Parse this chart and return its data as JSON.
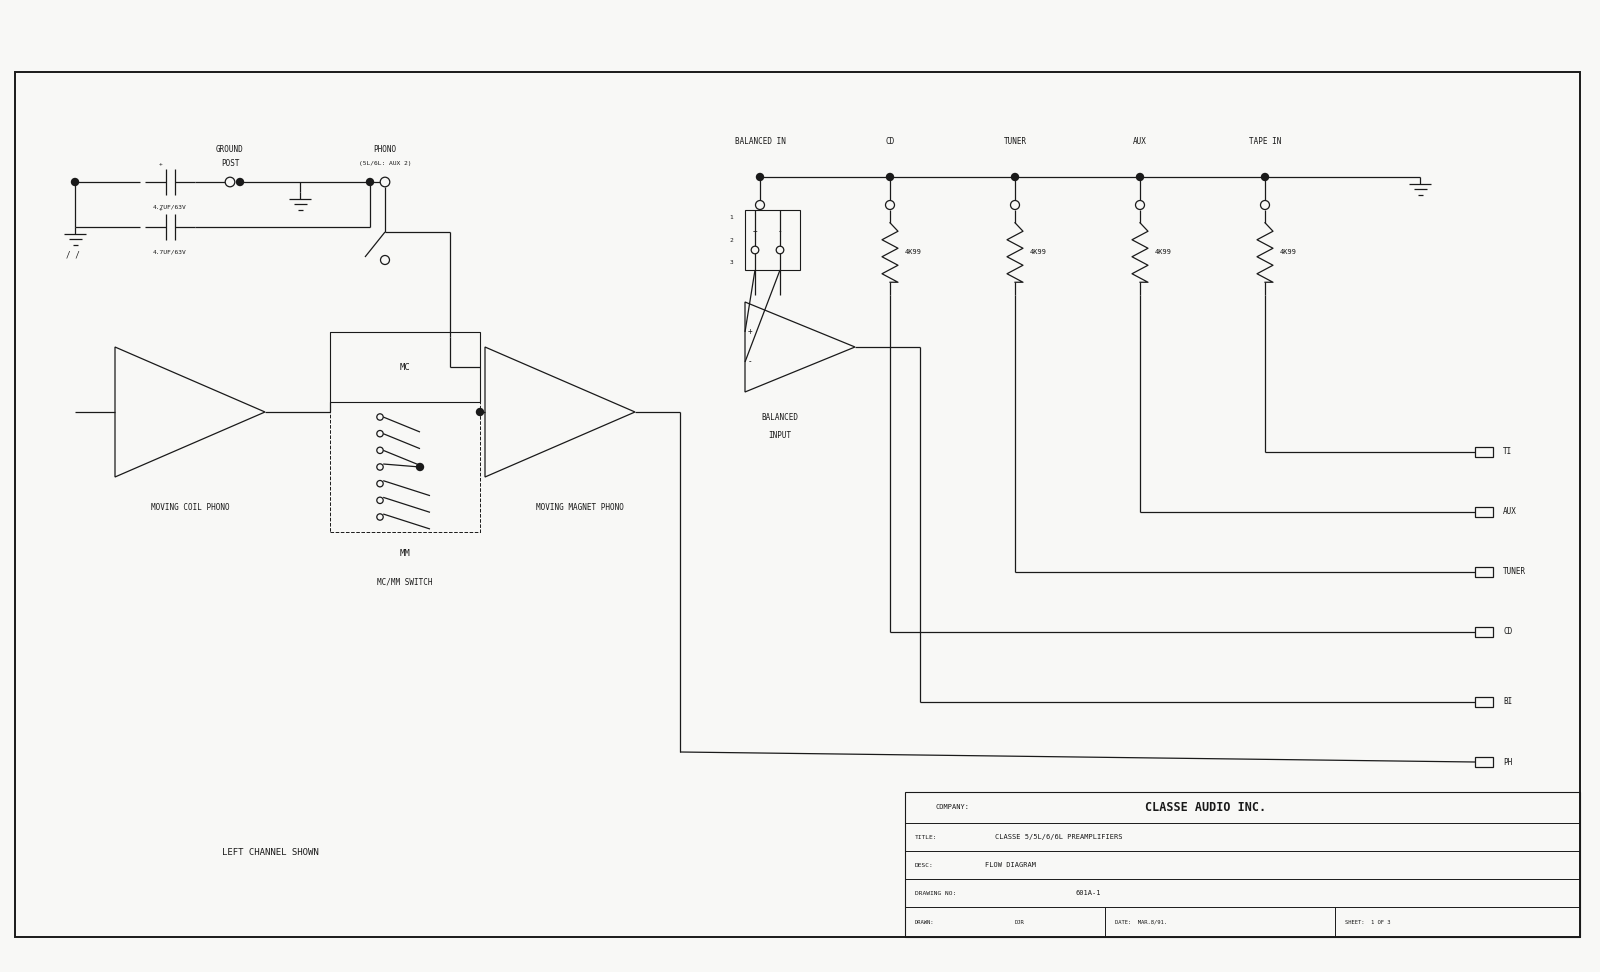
{
  "bg_color": "#f8f8f6",
  "line_color": "#1a1a1a",
  "company": "CLASSE AUDIO INC.",
  "drawing_title": "CLASSE 5/5L/6/6L PREAMPLIFIERS",
  "desc": "FLOW DIAGRAM",
  "drawing_no": "601A-1",
  "drawn": "DJR",
  "date": "MAR.8/91.",
  "sheet": "1 OF 3",
  "left_channel_label": "LEFT CHANNEL SHOWN",
  "input_labels": [
    "BALANCED IN",
    "CD",
    "TUNER",
    "AUX",
    "TAPE IN"
  ],
  "output_labels": [
    "TI",
    "AUX",
    "TUNER",
    "CD",
    "BI",
    "PH"
  ],
  "resistor_label": "4K99",
  "cap_label": "4.7UF/63V"
}
